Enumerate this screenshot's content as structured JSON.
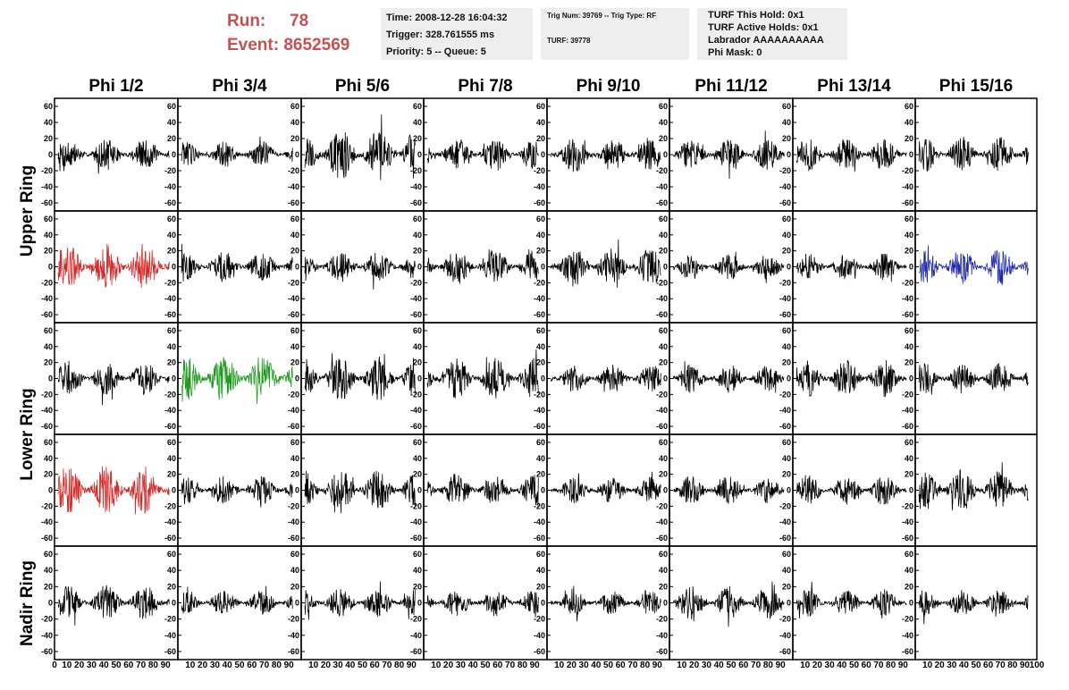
{
  "header": {
    "run_label": "Run:",
    "run_value": "78",
    "event_label": "Event:",
    "event_value": "8652569",
    "time": "Time: 2008-12-28 16:04:32",
    "trigger": "Trigger: 328.761555 ms",
    "priority": "Priority: 5 -- Queue: 5",
    "trig_num": "Trig Num: 39769 -- Trig Type: RF",
    "turf": "TURF: 39778",
    "turf_hold": "TURF This Hold: 0x1",
    "turf_active": "TURF Active Holds: 0x1",
    "labrador": "Labrador AAAAAAAAAA",
    "phi_mask": "Phi Mask: 0"
  },
  "chart_data": {
    "type": "line",
    "columns": [
      "Phi 1/2",
      "Phi 3/4",
      "Phi 5/6",
      "Phi 7/8",
      "Phi 9/10",
      "Phi 11/12",
      "Phi 13/14",
      "Phi 15/16"
    ],
    "ring_labels": [
      "Upper Ring",
      "Lower Ring",
      "Nadir Ring"
    ],
    "ylim": [
      -70,
      70
    ],
    "xlim": [
      0,
      100
    ],
    "yticks": [
      -60,
      -40,
      -20,
      0,
      20,
      40,
      60
    ],
    "xticks": [
      0,
      10,
      20,
      30,
      40,
      50,
      60,
      70,
      80,
      90,
      100
    ],
    "highlight_colors": {
      "red": "#d42a2a",
      "green": "#1f9a1f",
      "blue": "#1f2aa8",
      "default": "#000000"
    },
    "panels": [
      {
        "row": 0,
        "col": 0,
        "amp": 14,
        "color": "default"
      },
      {
        "row": 0,
        "col": 1,
        "amp": 12,
        "color": "default"
      },
      {
        "row": 0,
        "col": 2,
        "amp": 24,
        "color": "default"
      },
      {
        "row": 0,
        "col": 3,
        "amp": 15,
        "color": "default"
      },
      {
        "row": 0,
        "col": 4,
        "amp": 16,
        "color": "default"
      },
      {
        "row": 0,
        "col": 5,
        "amp": 14,
        "color": "default"
      },
      {
        "row": 0,
        "col": 6,
        "amp": 15,
        "color": "default"
      },
      {
        "row": 0,
        "col": 7,
        "amp": 16,
        "color": "default"
      },
      {
        "row": 1,
        "col": 0,
        "amp": 22,
        "color": "red"
      },
      {
        "row": 1,
        "col": 1,
        "amp": 14,
        "color": "default"
      },
      {
        "row": 1,
        "col": 2,
        "amp": 14,
        "color": "default"
      },
      {
        "row": 1,
        "col": 3,
        "amp": 16,
        "color": "default"
      },
      {
        "row": 1,
        "col": 4,
        "amp": 18,
        "color": "default"
      },
      {
        "row": 1,
        "col": 5,
        "amp": 12,
        "color": "default"
      },
      {
        "row": 1,
        "col": 6,
        "amp": 12,
        "color": "default"
      },
      {
        "row": 1,
        "col": 7,
        "amp": 17,
        "color": "blue"
      },
      {
        "row": 2,
        "col": 0,
        "amp": 15,
        "color": "default"
      },
      {
        "row": 2,
        "col": 1,
        "amp": 22,
        "color": "green"
      },
      {
        "row": 2,
        "col": 2,
        "amp": 20,
        "color": "default"
      },
      {
        "row": 2,
        "col": 3,
        "amp": 19,
        "color": "default"
      },
      {
        "row": 2,
        "col": 4,
        "amp": 13,
        "color": "default"
      },
      {
        "row": 2,
        "col": 5,
        "amp": 13,
        "color": "default"
      },
      {
        "row": 2,
        "col": 6,
        "amp": 17,
        "color": "default"
      },
      {
        "row": 2,
        "col": 7,
        "amp": 14,
        "color": "default"
      },
      {
        "row": 3,
        "col": 0,
        "amp": 22,
        "color": "red"
      },
      {
        "row": 3,
        "col": 1,
        "amp": 13,
        "color": "default"
      },
      {
        "row": 3,
        "col": 2,
        "amp": 19,
        "color": "default"
      },
      {
        "row": 3,
        "col": 3,
        "amp": 15,
        "color": "default"
      },
      {
        "row": 3,
        "col": 4,
        "amp": 12,
        "color": "default"
      },
      {
        "row": 3,
        "col": 5,
        "amp": 13,
        "color": "default"
      },
      {
        "row": 3,
        "col": 6,
        "amp": 14,
        "color": "default"
      },
      {
        "row": 3,
        "col": 7,
        "amp": 19,
        "color": "default"
      },
      {
        "row": 4,
        "col": 0,
        "amp": 16,
        "color": "default"
      },
      {
        "row": 4,
        "col": 1,
        "amp": 11,
        "color": "default"
      },
      {
        "row": 4,
        "col": 2,
        "amp": 13,
        "color": "default"
      },
      {
        "row": 4,
        "col": 3,
        "amp": 12,
        "color": "default"
      },
      {
        "row": 4,
        "col": 4,
        "amp": 11,
        "color": "default"
      },
      {
        "row": 4,
        "col": 5,
        "amp": 15,
        "color": "default"
      },
      {
        "row": 4,
        "col": 6,
        "amp": 12,
        "color": "default"
      },
      {
        "row": 4,
        "col": 7,
        "amp": 12,
        "color": "default"
      }
    ]
  }
}
